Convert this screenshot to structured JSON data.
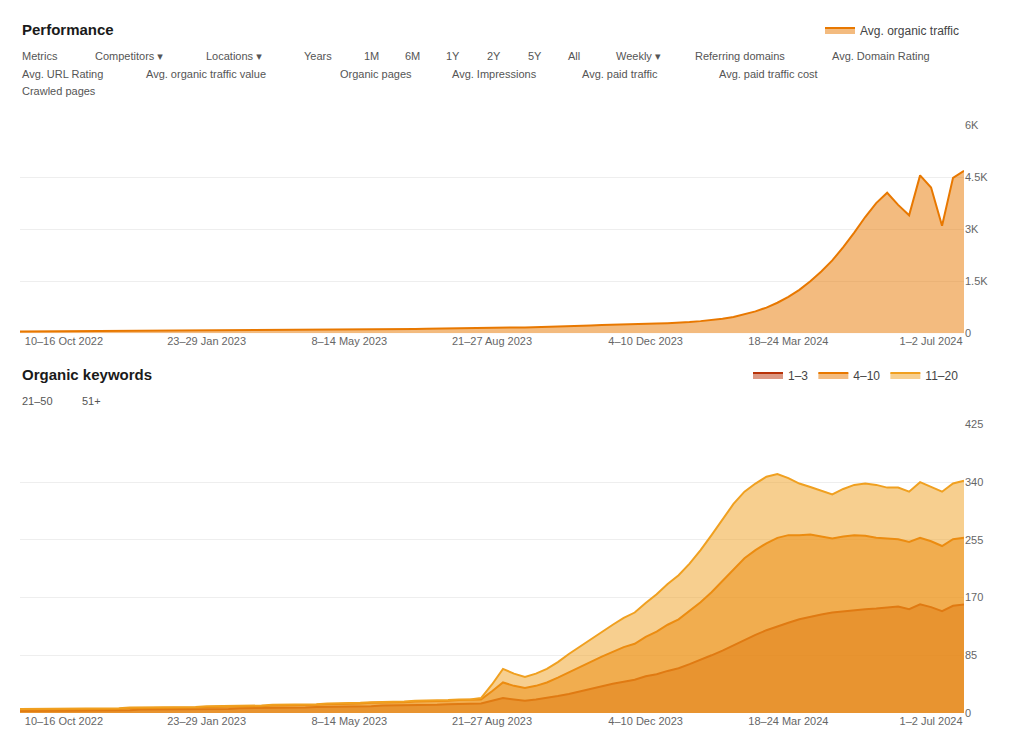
{
  "chart_data": [
    {
      "type": "area",
      "title": "Performance",
      "categories": [
        null,
        null,
        null,
        null,
        "10–16 Oct 2022",
        null,
        null,
        null,
        null,
        null,
        null,
        null,
        null,
        null,
        null,
        null,
        null,
        "23–29 Jan 2023",
        null,
        null,
        null,
        null,
        null,
        null,
        null,
        null,
        null,
        null,
        null,
        null,
        "8–14 May 2023",
        null,
        null,
        null,
        null,
        null,
        null,
        null,
        null,
        null,
        null,
        null,
        null,
        "21–27 Aug 2023",
        null,
        null,
        null,
        null,
        null,
        null,
        null,
        null,
        null,
        null,
        null,
        null,
        null,
        "4–10 Dec 2023",
        null,
        null,
        null,
        null,
        null,
        null,
        null,
        null,
        null,
        null,
        null,
        null,
        "18–24 Mar 2024",
        null,
        null,
        null,
        null,
        null,
        null,
        null,
        null,
        null,
        null,
        null,
        null,
        "1–2 Jul 2024",
        null,
        null,
        null
      ],
      "series": [
        {
          "name": "Avg. organic traffic",
          "color": "#e87800",
          "values": [
            48,
            50,
            49,
            51,
            50,
            49,
            51,
            52,
            54,
            55,
            56,
            57,
            58,
            60,
            61,
            62,
            63,
            65,
            67,
            68,
            70,
            72,
            75,
            78,
            80,
            83,
            86,
            90,
            94,
            98,
            102,
            107,
            112,
            110,
            113,
            118,
            122,
            128,
            133,
            138,
            143,
            148,
            155,
            165,
            175,
            168,
            163,
            170,
            178,
            188,
            198,
            210,
            222,
            235,
            240,
            248,
            255,
            268,
            278,
            290,
            302,
            322,
            350,
            382,
            420,
            470,
            540,
            630,
            740,
            880,
            1050,
            1250,
            1500,
            1780,
            2100,
            2480,
            2900,
            3350,
            3750,
            4050,
            3700,
            3400,
            4550,
            4200,
            3100,
            4480,
            4680
          ]
        }
      ],
      "ylim": [
        0,
        6000
      ],
      "yticks": [
        0,
        {
          "value": 1500,
          "label": "1.5K"
        },
        {
          "value": 3000,
          "label": "3K"
        },
        {
          "value": 4500,
          "label": "4.5K"
        },
        {
          "value": 6000,
          "label": "6K"
        }
      ],
      "grid": true,
      "legend": "top right",
      "annotations": [
        "Metrics",
        "Competitors ▾",
        "Locations ▾",
        "Years",
        "1M",
        "6M",
        "1Y",
        "2Y",
        "5Y",
        "All",
        "Weekly ▾",
        "Referring domains",
        "Avg. Domain Rating",
        "Avg. URL Rating",
        "Avg. organic traffic value",
        "Organic pages",
        "Avg. Impressions",
        "Avg. paid traffic",
        "Avg. paid traffic cost",
        "Crawled pages"
      ]
    },
    {
      "type": "area",
      "title": "Organic keywords",
      "categories": [
        null,
        null,
        null,
        null,
        "10–16 Oct 2022",
        null,
        null,
        null,
        null,
        null,
        null,
        null,
        null,
        null,
        null,
        null,
        null,
        "23–29 Jan 2023",
        null,
        null,
        null,
        null,
        null,
        null,
        null,
        null,
        null,
        null,
        null,
        null,
        "8–14 May 2023",
        null,
        null,
        null,
        null,
        null,
        null,
        null,
        null,
        null,
        null,
        null,
        null,
        "21–27 Aug 2023",
        null,
        null,
        null,
        null,
        null,
        null,
        null,
        null,
        null,
        null,
        null,
        null,
        null,
        "4–10 Dec 2023",
        null,
        null,
        null,
        null,
        null,
        null,
        null,
        null,
        null,
        null,
        null,
        null,
        "18–24 Mar 2024",
        null,
        null,
        null,
        null,
        null,
        null,
        null,
        null,
        null,
        null,
        null,
        null,
        "1–2 Jul 2024",
        null,
        null,
        null
      ],
      "series": [
        {
          "name": "1–3",
          "color": "#b83208",
          "values": [
            3,
            3,
            3,
            3,
            3,
            3,
            4,
            4,
            4,
            4,
            4,
            5,
            5,
            5,
            5,
            5,
            6,
            6,
            6,
            6,
            7,
            7,
            7,
            7,
            8,
            8,
            8,
            9,
            9,
            9,
            10,
            10,
            10,
            11,
            11,
            11,
            12,
            12,
            12,
            13,
            13,
            14,
            14,
            18,
            22,
            20,
            18,
            20,
            22,
            25,
            28,
            32,
            36,
            40,
            43,
            46,
            49,
            54,
            57,
            62,
            66,
            72,
            78,
            85,
            92,
            100,
            107,
            115,
            122,
            128,
            133,
            138,
            142,
            145,
            148,
            150,
            152,
            153,
            154,
            155,
            157,
            153,
            160,
            156,
            150,
            158,
            160
          ]
        },
        {
          "name": "4–10",
          "color": "#e87800",
          "values": [
            5,
            5,
            5,
            5,
            5,
            5,
            6,
            6,
            6,
            6,
            7,
            7,
            7,
            7,
            8,
            8,
            8,
            9,
            9,
            9,
            10,
            10,
            10,
            11,
            11,
            11,
            12,
            12,
            13,
            13,
            14,
            14,
            15,
            15,
            16,
            16,
            17,
            17,
            18,
            18,
            19,
            19,
            20,
            32,
            45,
            40,
            37,
            40,
            45,
            52,
            60,
            68,
            75,
            83,
            90,
            97,
            102,
            112,
            120,
            130,
            138,
            150,
            163,
            178,
            195,
            212,
            228,
            240,
            250,
            258,
            262,
            262,
            263,
            260,
            257,
            260,
            262,
            261,
            258,
            257,
            256,
            252,
            258,
            253,
            246,
            256,
            258
          ]
        },
        {
          "name": "11–20",
          "color": "#f0a020",
          "values": [
            6,
            6,
            6,
            6,
            6,
            6,
            7,
            7,
            7,
            7,
            8,
            8,
            8,
            8,
            9,
            9,
            9,
            10,
            10,
            10,
            11,
            11,
            11,
            12,
            12,
            12,
            13,
            13,
            14,
            14,
            15,
            15,
            16,
            16,
            17,
            17,
            18,
            18,
            19,
            19,
            20,
            20,
            22,
            42,
            65,
            58,
            53,
            58,
            65,
            75,
            87,
            98,
            108,
            120,
            130,
            140,
            148,
            162,
            175,
            190,
            203,
            220,
            240,
            262,
            285,
            308,
            326,
            338,
            348,
            352,
            346,
            338,
            333,
            328,
            322,
            330,
            336,
            338,
            336,
            332,
            332,
            326,
            340,
            333,
            326,
            338,
            342
          ]
        }
      ],
      "ylim": [
        0,
        425
      ],
      "yticks": [
        0,
        85,
        170,
        255,
        340,
        425
      ],
      "grid": true,
      "legend": "top right",
      "annotations": [
        "21–50",
        "51+"
      ]
    }
  ]
}
